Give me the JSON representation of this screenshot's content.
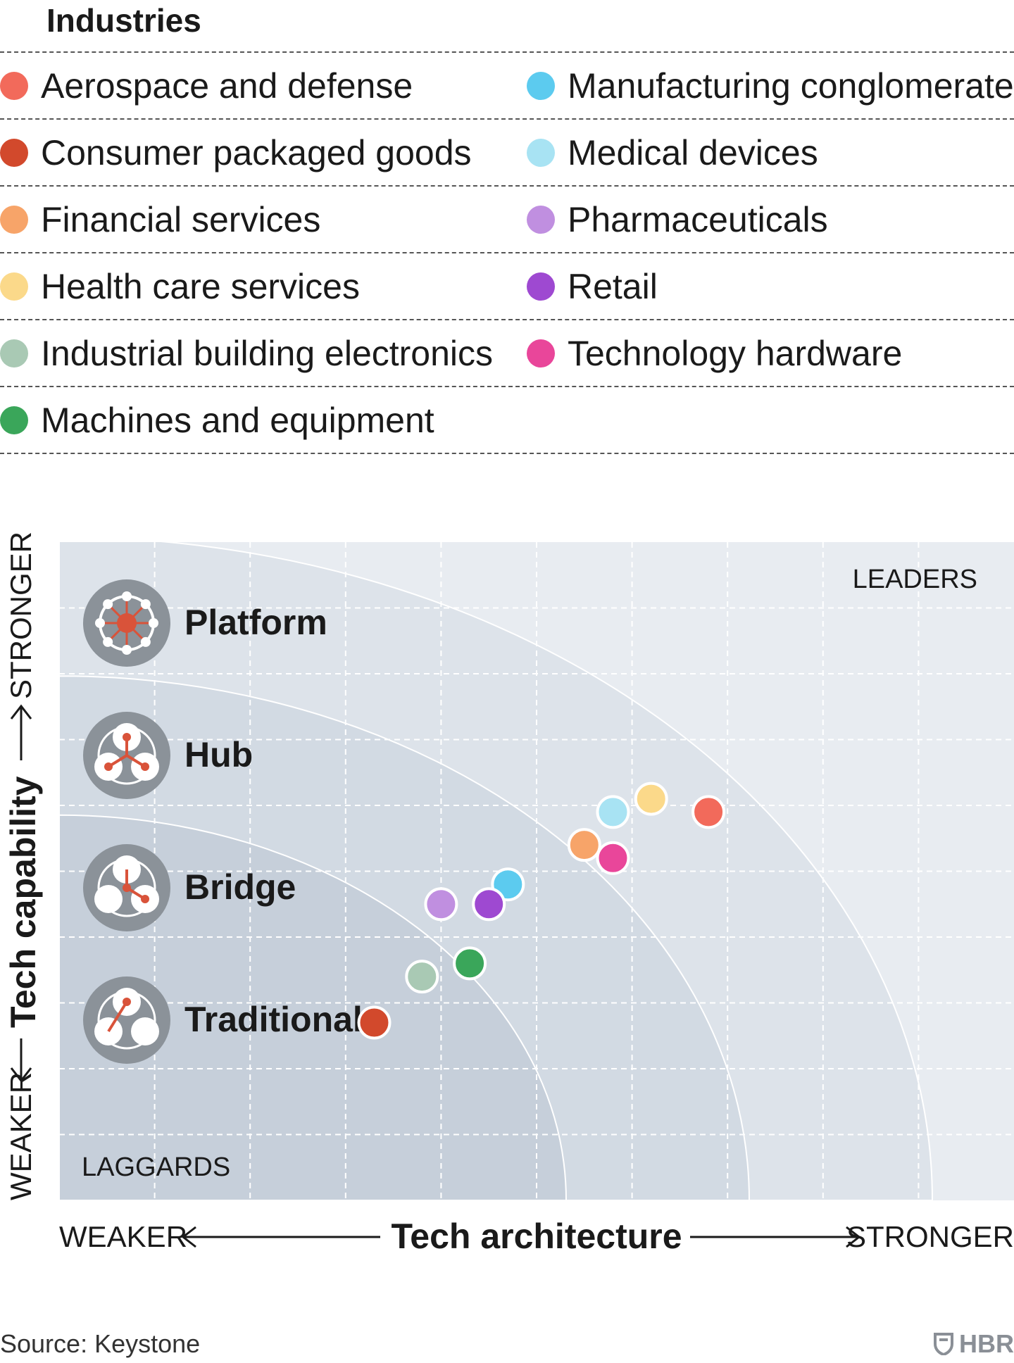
{
  "legend_title": "Industries",
  "source": "Source: Keystone",
  "logo_text": "HBR",
  "chart_data": {
    "type": "scatter",
    "xlabel": "Tech architecture",
    "ylabel": "Tech capability",
    "x_weak_label": "WEAKER",
    "x_strong_label": "STRONGER",
    "y_weak_label": "WEAKER",
    "y_strong_label": "STRONGER",
    "xlim": [
      0,
      10
    ],
    "ylim": [
      0,
      10
    ],
    "grid": true,
    "corner_labels": {
      "top_right": "LEADERS",
      "bottom_left": "LAGGARDS"
    },
    "zones": [
      {
        "label": "Traditional",
        "icon": "traditional-icon"
      },
      {
        "label": "Bridge",
        "icon": "bridge-icon"
      },
      {
        "label": "Hub",
        "icon": "hub-icon"
      },
      {
        "label": "Platform",
        "icon": "platform-icon"
      }
    ],
    "series": [
      {
        "name": "Aerospace and defense",
        "color": "#f26a5b",
        "x": 6.8,
        "y": 5.9
      },
      {
        "name": "Manufacturing conglomerates",
        "color": "#5ccbef",
        "x": 4.7,
        "y": 4.8
      },
      {
        "name": "Consumer packaged goods",
        "color": "#d2492c",
        "x": 3.3,
        "y": 2.7
      },
      {
        "name": "Medical devices",
        "color": "#a8e3f3",
        "x": 5.8,
        "y": 5.9
      },
      {
        "name": "Financial services",
        "color": "#f7a469",
        "x": 5.5,
        "y": 5.4
      },
      {
        "name": "Pharmaceuticals",
        "color": "#c08fe0",
        "x": 4.0,
        "y": 4.5
      },
      {
        "name": "Health care services",
        "color": "#fbd98a",
        "x": 6.2,
        "y": 6.1
      },
      {
        "name": "Retail",
        "color": "#9e49d1",
        "x": 4.5,
        "y": 4.5
      },
      {
        "name": "Industrial building electronics",
        "color": "#a9c9b4",
        "x": 3.8,
        "y": 3.4
      },
      {
        "name": "Technology hardware",
        "color": "#e9469a",
        "x": 5.8,
        "y": 5.2
      },
      {
        "name": "Machines and equipment",
        "color": "#3aa65a",
        "x": 4.3,
        "y": 3.6
      }
    ]
  }
}
